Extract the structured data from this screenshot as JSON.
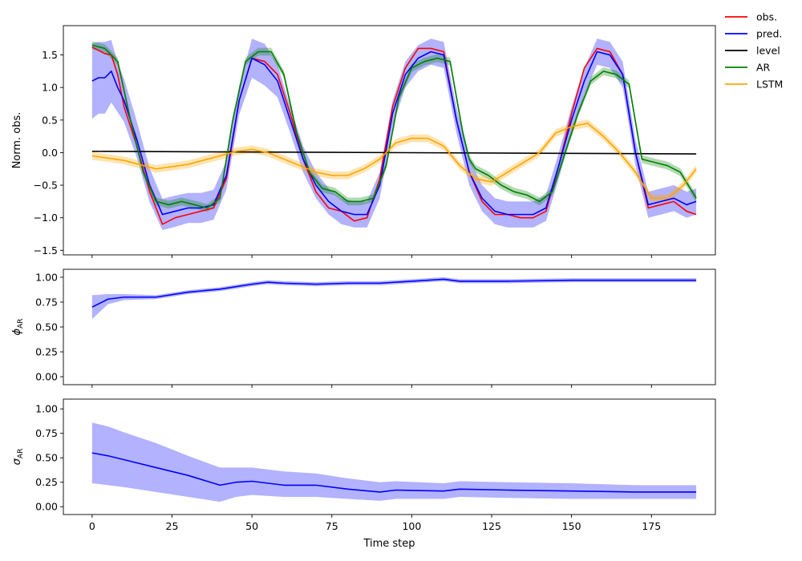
{
  "chart_data": [
    {
      "type": "line",
      "panel": "top",
      "title": "",
      "xlabel": "",
      "ylabel": "Norm. obs.",
      "xlim": [
        -9,
        195
      ],
      "ylim": [
        -1.57,
        1.95
      ],
      "xticks": [
        0,
        25,
        50,
        75,
        100,
        125,
        150,
        175
      ],
      "yticks": [
        -1.5,
        -1.0,
        -0.5,
        0.0,
        0.5,
        1.0,
        1.5
      ],
      "ytick_labels": [
        "−1.5",
        "−1.0",
        "−0.5",
        "0.0",
        "0.5",
        "1.0",
        "1.5"
      ],
      "legend": {
        "placement": "outside-top-right",
        "entries": [
          "obs.",
          "pred.",
          "level",
          "AR",
          "LSTM"
        ]
      },
      "series": [
        {
          "name": "obs.",
          "color": "#ff0000",
          "x": [
            0,
            4,
            6,
            8,
            10,
            14,
            18,
            22,
            26,
            30,
            34,
            38,
            42,
            46,
            50,
            54,
            58,
            62,
            66,
            70,
            74,
            78,
            82,
            86,
            90,
            94,
            98,
            102,
            106,
            110,
            114,
            118,
            122,
            126,
            130,
            134,
            138,
            142,
            146,
            150,
            154,
            158,
            162,
            166,
            170,
            174,
            178,
            182,
            186,
            189
          ],
          "values": [
            1.62,
            1.52,
            1.5,
            1.2,
            0.7,
            0.1,
            -0.6,
            -1.1,
            -1.0,
            -0.95,
            -0.9,
            -0.85,
            -0.4,
            0.8,
            1.45,
            1.4,
            1.2,
            0.6,
            -0.1,
            -0.6,
            -0.85,
            -0.9,
            -1.05,
            -1.0,
            -0.4,
            0.7,
            1.3,
            1.6,
            1.6,
            1.55,
            0.5,
            -0.3,
            -0.75,
            -0.95,
            -0.95,
            -1.0,
            -1.0,
            -0.9,
            -0.2,
            0.6,
            1.3,
            1.6,
            1.55,
            1.2,
            0.0,
            -0.85,
            -0.8,
            -0.75,
            -0.9,
            -0.95
          ]
        },
        {
          "name": "pred.",
          "color": "#0000ff",
          "x": [
            0,
            2,
            4,
            6,
            8,
            10,
            14,
            18,
            22,
            26,
            30,
            34,
            38,
            42,
            46,
            50,
            54,
            58,
            62,
            66,
            70,
            74,
            78,
            82,
            86,
            90,
            94,
            98,
            102,
            106,
            110,
            114,
            118,
            122,
            126,
            130,
            134,
            138,
            142,
            146,
            150,
            154,
            158,
            162,
            166,
            170,
            174,
            178,
            182,
            186,
            189
          ],
          "values": [
            1.1,
            1.15,
            1.15,
            1.25,
            1.0,
            0.8,
            0.2,
            -0.5,
            -0.95,
            -0.9,
            -0.85,
            -0.85,
            -0.8,
            -0.35,
            0.8,
            1.45,
            1.35,
            1.1,
            0.5,
            -0.1,
            -0.5,
            -0.75,
            -0.9,
            -0.95,
            -0.95,
            -0.5,
            0.6,
            1.2,
            1.45,
            1.55,
            1.5,
            0.5,
            -0.3,
            -0.7,
            -0.9,
            -0.95,
            -0.95,
            -0.95,
            -0.85,
            -0.2,
            0.5,
            1.1,
            1.55,
            1.5,
            1.2,
            0.0,
            -0.8,
            -0.75,
            -0.7,
            -0.8,
            -0.75
          ],
          "band_halfwidth": [
            0.58,
            0.55,
            0.55,
            0.48,
            0.38,
            0.33,
            0.28,
            0.26,
            0.24,
            0.24,
            0.23,
            0.23,
            0.23,
            0.22,
            0.22,
            0.3,
            0.32,
            0.25,
            0.2,
            0.2,
            0.2,
            0.2,
            0.2,
            0.2,
            0.2,
            0.2,
            0.2,
            0.2,
            0.2,
            0.2,
            0.2,
            0.2,
            0.2,
            0.2,
            0.2,
            0.2,
            0.2,
            0.2,
            0.2,
            0.2,
            0.2,
            0.2,
            0.2,
            0.2,
            0.2,
            0.2,
            0.2,
            0.2,
            0.2,
            0.2,
            0.2
          ]
        },
        {
          "name": "level",
          "color": "#000000",
          "x": [
            0,
            189
          ],
          "values": [
            0.02,
            -0.02
          ]
        },
        {
          "name": "AR",
          "color": "#008000",
          "x": [
            0,
            4,
            8,
            12,
            16,
            20,
            24,
            28,
            32,
            36,
            40,
            44,
            48,
            52,
            56,
            60,
            64,
            68,
            72,
            76,
            80,
            84,
            88,
            92,
            96,
            100,
            104,
            108,
            112,
            116,
            118,
            120,
            124,
            128,
            132,
            136,
            140,
            144,
            148,
            152,
            156,
            160,
            164,
            168,
            172,
            176,
            180,
            184,
            189
          ],
          "values": [
            1.65,
            1.6,
            1.4,
            0.5,
            -0.3,
            -0.75,
            -0.8,
            -0.75,
            -0.8,
            -0.85,
            -0.7,
            0.5,
            1.4,
            1.55,
            1.55,
            1.2,
            0.3,
            -0.3,
            -0.55,
            -0.6,
            -0.75,
            -0.75,
            -0.7,
            -0.2,
            0.85,
            1.3,
            1.4,
            1.45,
            1.4,
            0.3,
            -0.1,
            -0.25,
            -0.35,
            -0.5,
            -0.6,
            -0.65,
            -0.75,
            -0.6,
            0.0,
            0.6,
            1.1,
            1.25,
            1.2,
            1.05,
            -0.1,
            -0.15,
            -0.2,
            -0.3,
            -0.7
          ],
          "band_halfwidth": 0.06
        },
        {
          "name": "LSTM",
          "color": "#ffa500",
          "x": [
            0,
            10,
            20,
            30,
            40,
            45,
            50,
            55,
            60,
            65,
            70,
            75,
            80,
            85,
            90,
            95,
            100,
            105,
            110,
            115,
            120,
            125,
            130,
            135,
            140,
            145,
            150,
            155,
            160,
            165,
            170,
            175,
            180,
            185,
            189
          ],
          "values": [
            -0.05,
            -0.12,
            -0.25,
            -0.18,
            -0.05,
            0.02,
            0.05,
            0.0,
            -0.1,
            -0.2,
            -0.3,
            -0.35,
            -0.35,
            -0.25,
            -0.1,
            0.15,
            0.22,
            0.22,
            0.1,
            -0.2,
            -0.4,
            -0.45,
            -0.3,
            -0.15,
            0.0,
            0.3,
            0.4,
            0.45,
            0.25,
            0.0,
            -0.3,
            -0.7,
            -0.7,
            -0.5,
            -0.25
          ],
          "band_halfwidth": 0.06
        }
      ]
    },
    {
      "type": "line",
      "panel": "middle",
      "ylabel": "ϕ",
      "ylabel_subscript": "AR",
      "xlim": [
        -9,
        195
      ],
      "ylim": [
        -0.08,
        1.08
      ],
      "yticks": [
        0.0,
        0.25,
        0.5,
        0.75,
        1.0
      ],
      "ytick_labels": [
        "0.00",
        "0.25",
        "0.50",
        "0.75",
        "1.00"
      ],
      "series": [
        {
          "name": "phi_AR",
          "color": "#0000ff",
          "x": [
            0,
            5,
            10,
            20,
            30,
            40,
            50,
            55,
            60,
            70,
            80,
            90,
            100,
            110,
            115,
            130,
            150,
            160,
            170,
            189
          ],
          "values": [
            0.7,
            0.78,
            0.8,
            0.8,
            0.85,
            0.88,
            0.93,
            0.95,
            0.94,
            0.93,
            0.94,
            0.94,
            0.96,
            0.98,
            0.96,
            0.96,
            0.97,
            0.97,
            0.97,
            0.97
          ],
          "band_halfwidth": [
            0.12,
            0.05,
            0.03,
            0.02,
            0.02,
            0.02,
            0.02,
            0.02,
            0.02,
            0.02,
            0.02,
            0.02,
            0.02,
            0.02,
            0.02,
            0.02,
            0.02,
            0.02,
            0.02,
            0.02
          ]
        }
      ]
    },
    {
      "type": "line",
      "panel": "bottom",
      "ylabel": "σ",
      "ylabel_subscript": "AR",
      "xlabel": "Time step",
      "xlim": [
        -9,
        195
      ],
      "ylim": [
        -0.08,
        1.1
      ],
      "xticks": [
        0,
        25,
        50,
        75,
        100,
        125,
        150,
        175
      ],
      "yticks": [
        0.0,
        0.25,
        0.5,
        0.75,
        1.0
      ],
      "ytick_labels": [
        "0.00",
        "0.25",
        "0.50",
        "0.75",
        "1.00"
      ],
      "series": [
        {
          "name": "sigma_AR",
          "color": "#0000ff",
          "x": [
            0,
            5,
            10,
            20,
            30,
            40,
            45,
            50,
            60,
            70,
            80,
            90,
            95,
            110,
            115,
            130,
            150,
            170,
            189
          ],
          "values": [
            0.55,
            0.52,
            0.48,
            0.4,
            0.32,
            0.22,
            0.25,
            0.26,
            0.22,
            0.22,
            0.18,
            0.15,
            0.17,
            0.16,
            0.18,
            0.17,
            0.16,
            0.15,
            0.15
          ],
          "band_low": [
            0.24,
            0.22,
            0.2,
            0.15,
            0.1,
            0.05,
            0.1,
            0.12,
            0.1,
            0.1,
            0.08,
            0.06,
            0.08,
            0.08,
            0.1,
            0.09,
            0.08,
            0.08,
            0.08
          ],
          "band_high": [
            0.86,
            0.82,
            0.76,
            0.65,
            0.52,
            0.4,
            0.4,
            0.4,
            0.36,
            0.34,
            0.29,
            0.25,
            0.26,
            0.24,
            0.26,
            0.25,
            0.24,
            0.22,
            0.22
          ]
        }
      ]
    }
  ]
}
